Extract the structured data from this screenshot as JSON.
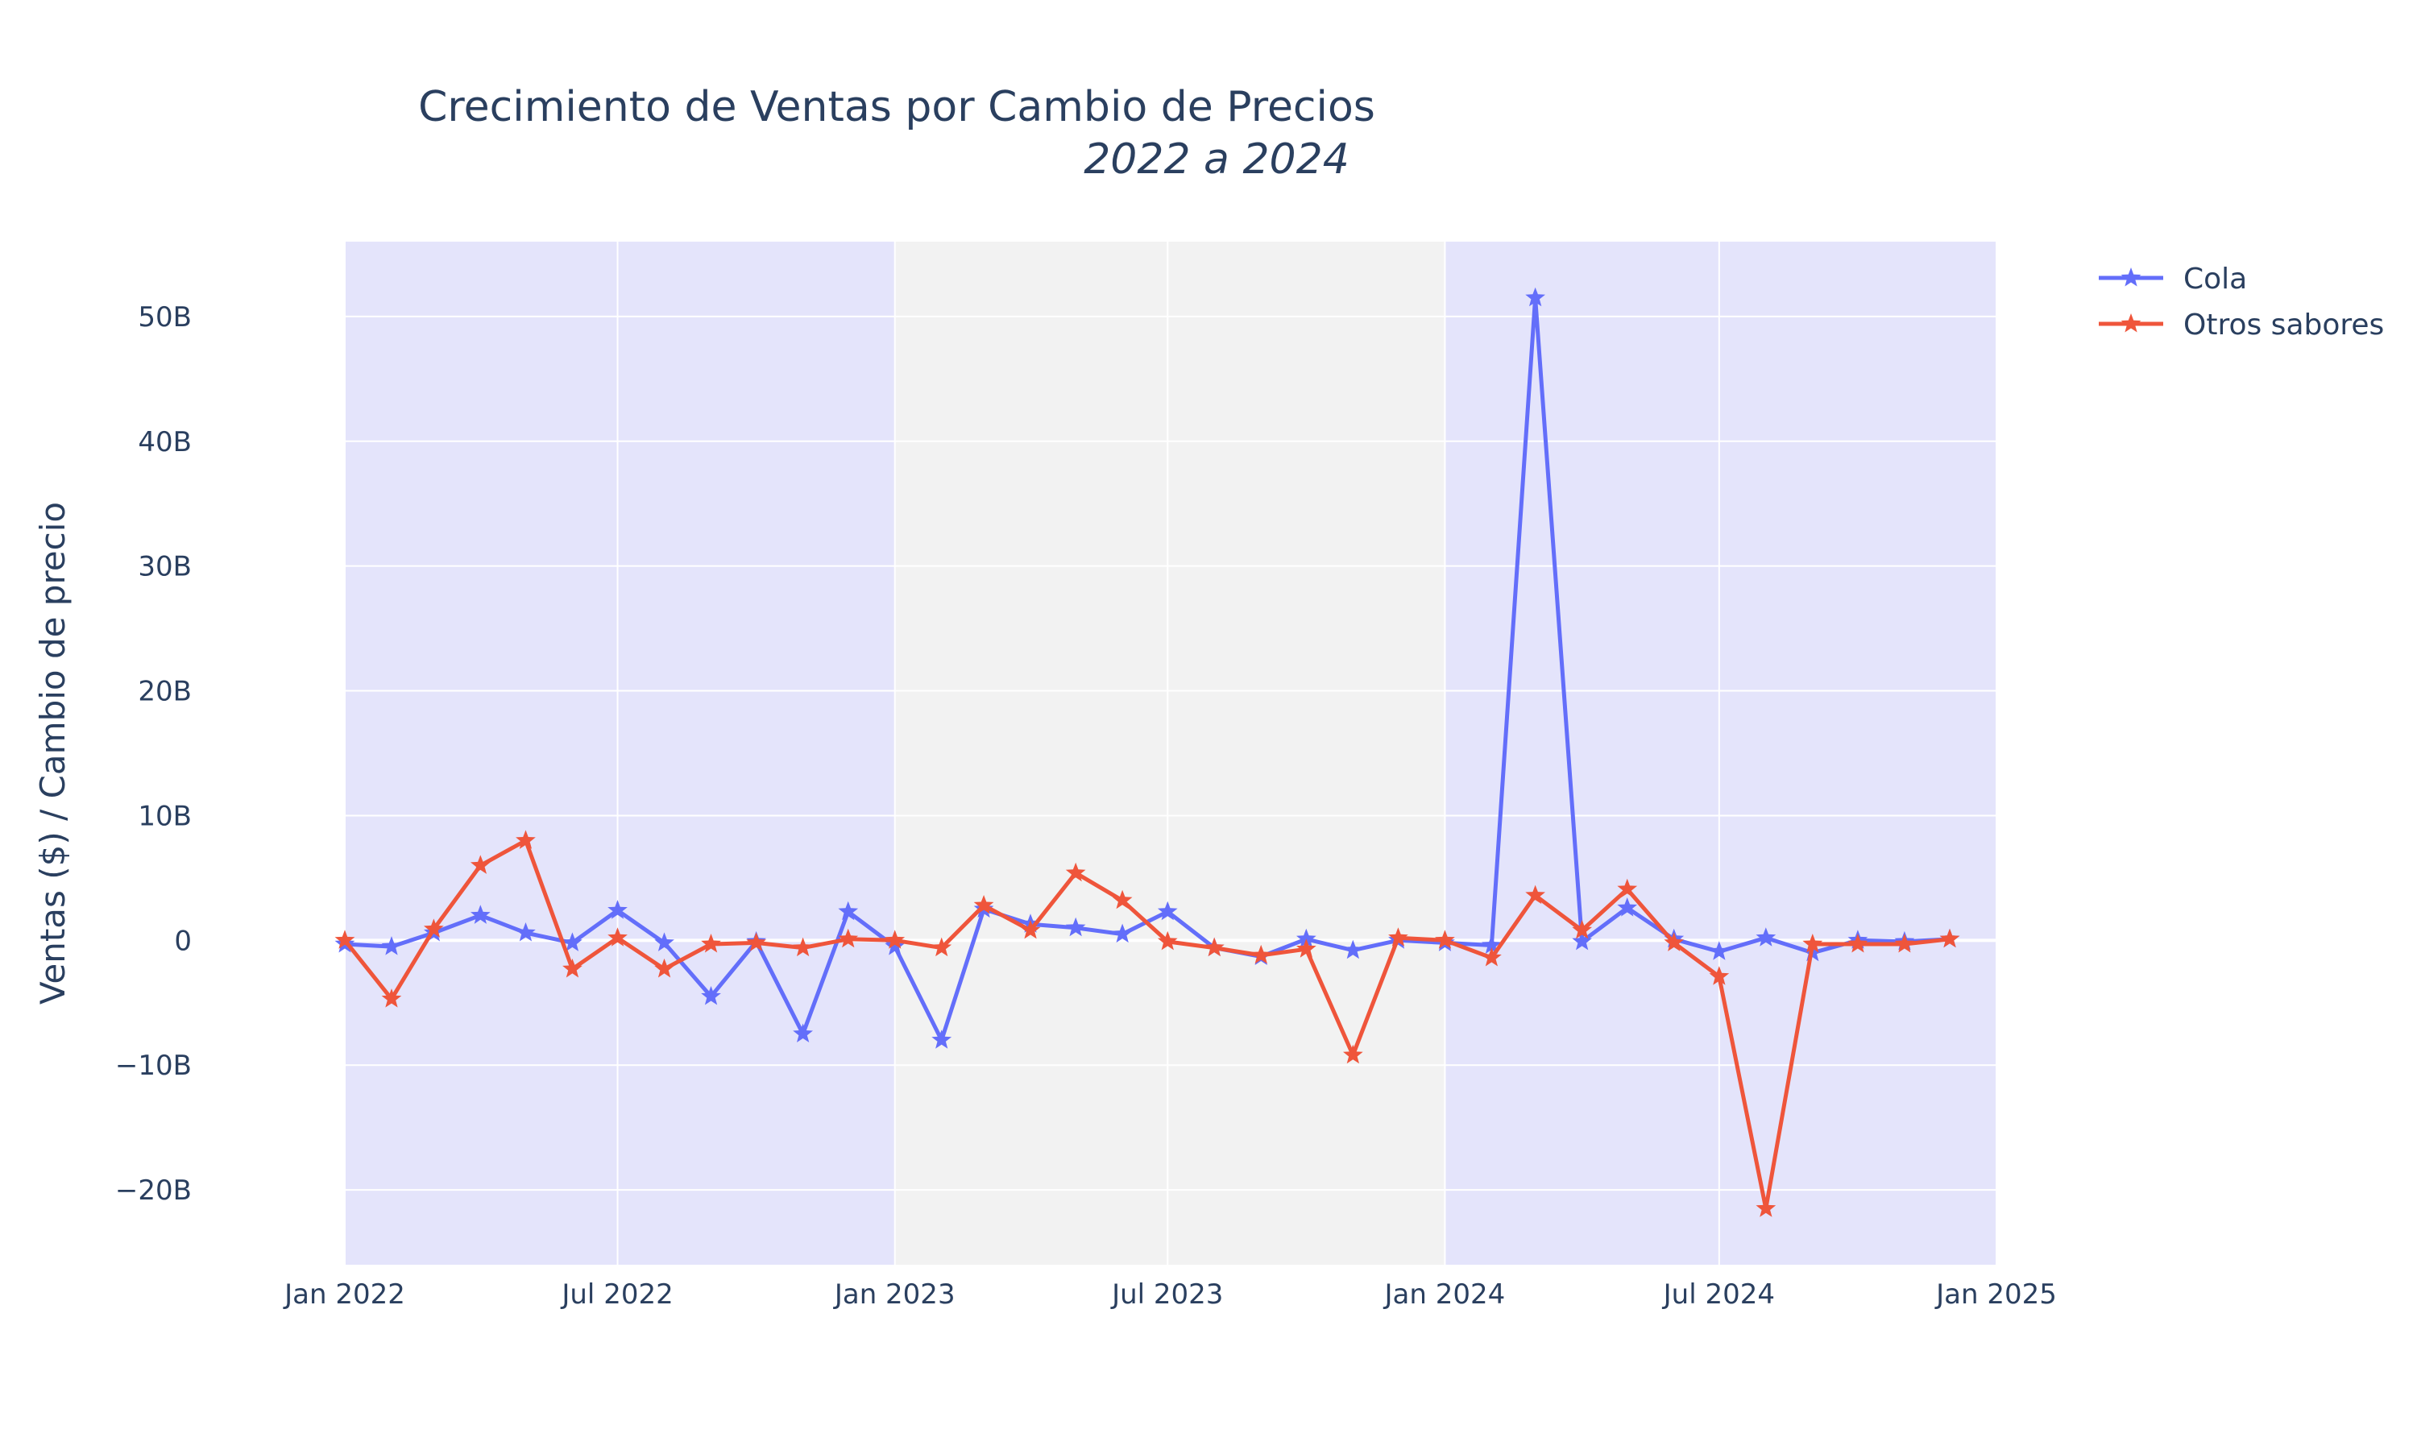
{
  "chart_data": {
    "type": "line",
    "title": "Crecimiento de Ventas por Cambio de Precios",
    "subtitle": "2022 a 2024",
    "xlabel": "",
    "ylabel": "Ventas ($) / Cambio de precio",
    "xlim": [
      "2022-01-01",
      "2025-01-01"
    ],
    "ylim": [
      -26,
      56
    ],
    "y_unit_suffix": "B",
    "x_ticks": [
      {
        "date": "2022-01-01",
        "label": "Jan 2022"
      },
      {
        "date": "2022-07-01",
        "label": "Jul 2022"
      },
      {
        "date": "2023-01-01",
        "label": "Jan 2023"
      },
      {
        "date": "2023-07-01",
        "label": "Jul 2023"
      },
      {
        "date": "2024-01-01",
        "label": "Jan 2024"
      },
      {
        "date": "2024-07-01",
        "label": "Jul 2024"
      },
      {
        "date": "2025-01-01",
        "label": "Jan 2025"
      }
    ],
    "y_ticks": [
      {
        "value": -20,
        "label": "−20B"
      },
      {
        "value": -10,
        "label": "−10B"
      },
      {
        "value": 0,
        "label": "0"
      },
      {
        "value": 10,
        "label": "10B"
      },
      {
        "value": 20,
        "label": "20B"
      },
      {
        "value": 30,
        "label": "30B"
      },
      {
        "value": 40,
        "label": "40B"
      },
      {
        "value": 50,
        "label": "50B"
      }
    ],
    "background_bands": [
      {
        "from": "2022-01-01",
        "to": "2023-01-01",
        "color": "#e4e4fb"
      },
      {
        "from": "2023-01-01",
        "to": "2024-01-01",
        "color": "#f2f2f2"
      },
      {
        "from": "2024-01-01",
        "to": "2025-01-01",
        "color": "#e4e4fb"
      }
    ],
    "grid": true,
    "legend_position": "top-right",
    "x": [
      "2022-01-01",
      "2022-02-01",
      "2022-03-01",
      "2022-04-01",
      "2022-05-01",
      "2022-06-01",
      "2022-07-01",
      "2022-08-01",
      "2022-09-01",
      "2022-10-01",
      "2022-11-01",
      "2022-12-01",
      "2023-01-01",
      "2023-02-01",
      "2023-03-01",
      "2023-04-01",
      "2023-05-01",
      "2023-06-01",
      "2023-07-01",
      "2023-08-01",
      "2023-09-01",
      "2023-10-01",
      "2023-11-01",
      "2023-12-01",
      "2024-01-01",
      "2024-02-01",
      "2024-03-01",
      "2024-04-01",
      "2024-05-01",
      "2024-06-01",
      "2024-07-01",
      "2024-08-01",
      "2024-09-01",
      "2024-10-01",
      "2024-11-01",
      "2024-12-01"
    ],
    "series": [
      {
        "name": "Cola",
        "color": "#636efa",
        "marker": "star",
        "values": [
          -0.3,
          -0.5,
          0.6,
          2.0,
          0.6,
          -0.2,
          2.4,
          -0.2,
          -4.5,
          -0.1,
          -7.5,
          2.3,
          -0.5,
          -8.0,
          2.5,
          1.3,
          1.0,
          0.5,
          2.3,
          -0.6,
          -1.3,
          0.1,
          -0.8,
          0.0,
          -0.2,
          -0.4,
          51.5,
          -0.1,
          2.6,
          0.1,
          -0.9,
          0.2,
          -1.0,
          0.0,
          -0.1,
          0.1
        ]
      },
      {
        "name": "Otros sabores",
        "color": "#ef553b",
        "marker": "star",
        "values": [
          0.0,
          -4.7,
          0.9,
          6.0,
          8.0,
          -2.3,
          0.2,
          -2.3,
          -0.3,
          -0.2,
          -0.6,
          0.1,
          0.0,
          -0.6,
          2.8,
          0.8,
          5.4,
          3.2,
          -0.1,
          -0.6,
          -1.2,
          -0.7,
          -9.2,
          0.2,
          0.0,
          -1.4,
          3.6,
          0.8,
          4.1,
          -0.2,
          -2.9,
          -21.5,
          -0.3,
          -0.3,
          -0.3,
          0.1
        ]
      }
    ]
  }
}
